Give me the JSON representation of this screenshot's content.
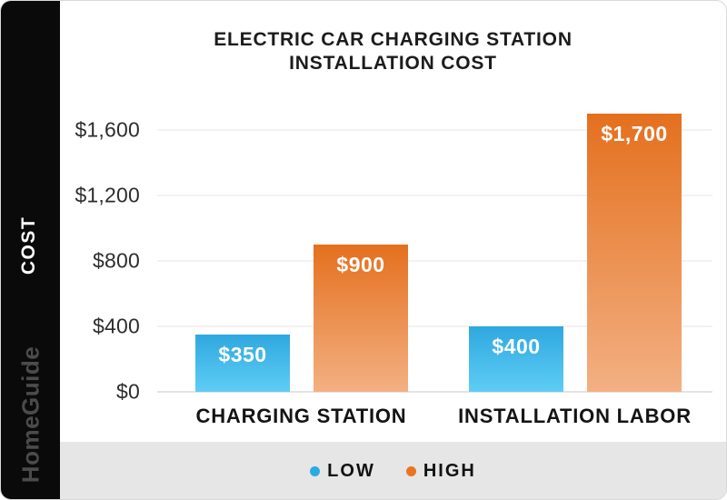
{
  "sidebar": {
    "cost_label": "COST",
    "brand": "HomeGuide"
  },
  "chart_data": {
    "type": "bar",
    "title": "ELECTRIC CAR CHARGING STATION INSTALLATION COST",
    "title_lines": [
      "ELECTRIC CAR CHARGING STATION",
      "INSTALLATION COST"
    ],
    "categories": [
      "CHARGING STATION",
      "INSTALLATION LABOR"
    ],
    "series": [
      {
        "name": "LOW",
        "values": [
          350,
          400
        ],
        "labels": [
          "$350",
          "$400"
        ],
        "color_top": "#2FA8DF",
        "color_bottom": "#5ECDF5",
        "legend_dot_color": "#29ABE2"
      },
      {
        "name": "HIGH",
        "values": [
          900,
          1700
        ],
        "labels": [
          "$900",
          "$1,700"
        ],
        "color_top": "#E4701E",
        "color_bottom": "#F3B083",
        "legend_dot_color": "#E8761F"
      }
    ],
    "ylabel": "COST",
    "yticks": {
      "values": [
        0,
        400,
        800,
        1200,
        1600
      ],
      "labels": [
        "$0",
        "$400",
        "$800",
        "$1,200",
        "$1,600"
      ]
    },
    "ylim": [
      0,
      1800
    ],
    "grid": true,
    "legend_position": "bottom"
  }
}
